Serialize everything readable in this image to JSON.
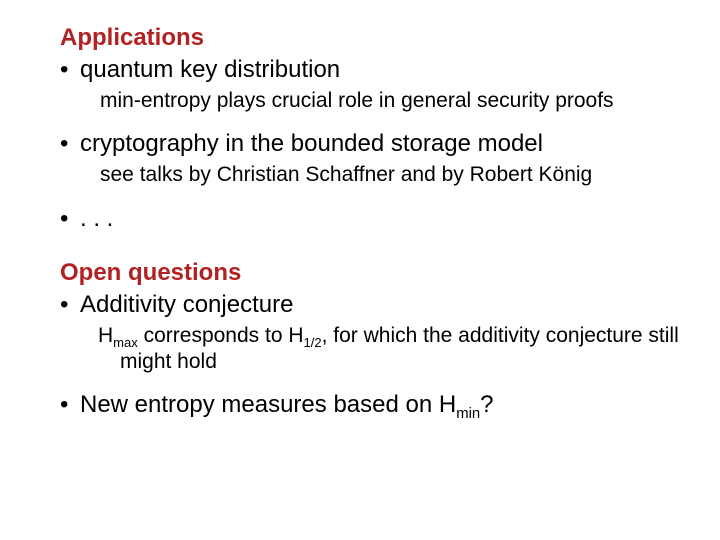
{
  "section1": {
    "heading": "Applications",
    "b1": "quantum key distribution",
    "s1": "min-entropy plays crucial role in general security proofs",
    "b2": "cryptography in the bounded storage model",
    "s2": "see talks by Christian Schaffner and by Robert König",
    "b3": ". . ."
  },
  "section2": {
    "heading": "Open questions",
    "b1": "Additivity conjecture",
    "s1a": "H",
    "s1b": "max",
    "s1c": " corresponds to H",
    "s1d": "1/2",
    "s1e": ", for which the additivity conjecture still might hold",
    "b2a": "New entropy measures based on H",
    "b2b": "min",
    "b2c": "?"
  },
  "colors": {
    "heading": "#b22222",
    "text": "#000000",
    "background": "#ffffff"
  },
  "fonts": {
    "heading_size": 24,
    "bullet_size": 24,
    "sub_size": 21
  }
}
